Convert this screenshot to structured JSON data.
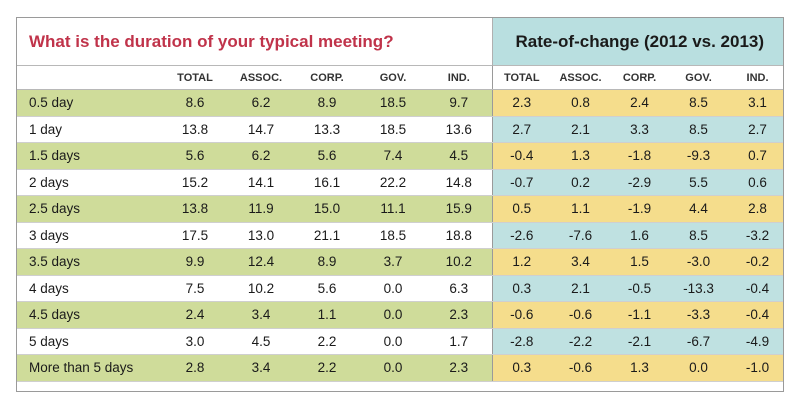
{
  "left_title": "What is the duration of your typical meeting?",
  "right_title": "Rate-of-change (2012 vs. 2013)",
  "chart_data": {
    "type": "table",
    "columns": [
      "TOTAL",
      "ASSOC.",
      "CORP.",
      "GOV.",
      "IND."
    ],
    "rows": [
      {
        "label": "0.5 day",
        "values": [
          "8.6",
          "6.2",
          "8.9",
          "18.5",
          "9.7"
        ],
        "changes": [
          "2.3",
          "0.8",
          "2.4",
          "8.5",
          "3.1"
        ]
      },
      {
        "label": "1 day",
        "values": [
          "13.8",
          "14.7",
          "13.3",
          "18.5",
          "13.6"
        ],
        "changes": [
          "2.7",
          "2.1",
          "3.3",
          "8.5",
          "2.7"
        ]
      },
      {
        "label": "1.5 days",
        "values": [
          "5.6",
          "6.2",
          "5.6",
          "7.4",
          "4.5"
        ],
        "changes": [
          "-0.4",
          "1.3",
          "-1.8",
          "-9.3",
          "0.7"
        ]
      },
      {
        "label": "2 days",
        "values": [
          "15.2",
          "14.1",
          "16.1",
          "22.2",
          "14.8"
        ],
        "changes": [
          "-0.7",
          "0.2",
          "-2.9",
          "5.5",
          "0.6"
        ]
      },
      {
        "label": "2.5 days",
        "values": [
          "13.8",
          "11.9",
          "15.0",
          "11.1",
          "15.9"
        ],
        "changes": [
          "0.5",
          "1.1",
          "-1.9",
          "4.4",
          "2.8"
        ]
      },
      {
        "label": "3 days",
        "values": [
          "17.5",
          "13.0",
          "21.1",
          "18.5",
          "18.8"
        ],
        "changes": [
          "-2.6",
          "-7.6",
          "1.6",
          "8.5",
          "-3.2"
        ]
      },
      {
        "label": "3.5 days",
        "values": [
          "9.9",
          "12.4",
          "8.9",
          "3.7",
          "10.2"
        ],
        "changes": [
          "1.2",
          "3.4",
          "1.5",
          "-3.0",
          "-0.2"
        ]
      },
      {
        "label": "4 days",
        "values": [
          "7.5",
          "10.2",
          "5.6",
          "0.0",
          "6.3"
        ],
        "changes": [
          "0.3",
          "2.1",
          "-0.5",
          "-13.3",
          "-0.4"
        ]
      },
      {
        "label": "4.5 days",
        "values": [
          "2.4",
          "3.4",
          "1.1",
          "0.0",
          "2.3"
        ],
        "changes": [
          "-0.6",
          "-0.6",
          "-1.1",
          "-3.3",
          "-0.4"
        ]
      },
      {
        "label": "5 days",
        "values": [
          "3.0",
          "4.5",
          "2.2",
          "0.0",
          "1.7"
        ],
        "changes": [
          "-2.8",
          "-2.2",
          "-2.1",
          "-6.7",
          "-4.9"
        ]
      },
      {
        "label": "More than 5 days",
        "values": [
          "2.8",
          "3.4",
          "2.2",
          "0.0",
          "2.3"
        ],
        "changes": [
          "0.3",
          "-0.6",
          "1.3",
          "0.0",
          "-1.0"
        ]
      }
    ]
  },
  "colors": {
    "title_red": "#c0334a",
    "left_band_green": "#cfdc9a",
    "right_band_yellow": "#f5dd8c",
    "right_band_teal": "#bfe1e1",
    "right_header_teal": "#b9dfe0"
  }
}
